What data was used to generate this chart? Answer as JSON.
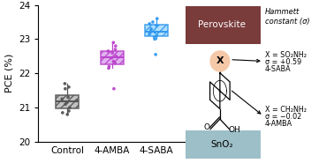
{
  "categories": [
    "Control",
    "4-AMBA",
    "4-SABA"
  ],
  "box_colors": [
    "#555555",
    "#bb44cc",
    "#3399ee"
  ],
  "box_face_colors": [
    "#bbbbbb",
    "#ddaaee",
    "#aaddff"
  ],
  "ylim": [
    20,
    24
  ],
  "yticks": [
    20,
    21,
    22,
    23,
    24
  ],
  "ylabel": "PCE (%)",
  "control_data": [
    21.6,
    21.55,
    21.3,
    21.25,
    21.0,
    20.85,
    20.8,
    21.15,
    21.7,
    21.2,
    21.1,
    20.9
  ],
  "amba_data": [
    22.7,
    22.65,
    22.5,
    22.45,
    22.3,
    22.2,
    22.15,
    22.8,
    22.9,
    22.6,
    21.55,
    22.35
  ],
  "saba_data": [
    23.5,
    23.45,
    23.3,
    23.25,
    23.15,
    23.05,
    23.0,
    23.4,
    23.6,
    23.2,
    22.55,
    23.1
  ],
  "perovskite_color": "#7a3b3b",
  "perovskite_text": "Perovskite",
  "sno2_color": "#9dbfc8",
  "sno2_text": "SnO₂",
  "hammett_title": "Hammett\nconstant (σ)",
  "arrow1_text_line1": "X = SO₂NH₂",
  "arrow1_text_line2": "σ = +0.59",
  "arrow1_text_line3": "4-SABA",
  "arrow2_text_line1": "X = CH₂NH₂",
  "arrow2_text_line2": "σ = −0.02",
  "arrow2_text_line3": "4-AMBA",
  "x_circle_color": "#f5c8a8",
  "background_color": "#ffffff"
}
